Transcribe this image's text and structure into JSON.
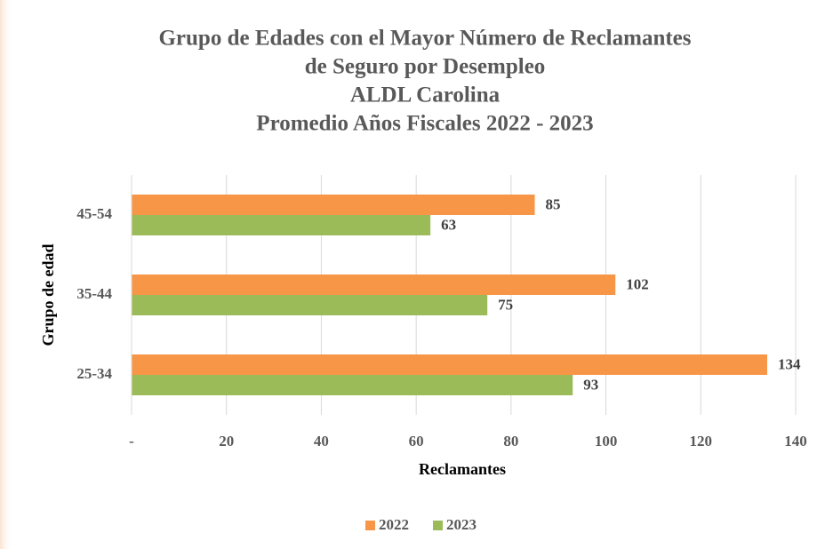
{
  "chart_data": {
    "type": "bar",
    "orientation": "horizontal",
    "title": [
      "Grupo  de Edades con el Mayor Número de Reclamantes",
      "de Seguro por Desempleo",
      "ALDL Carolina",
      "Promedio  Años Fiscales 2022 - 2023"
    ],
    "x_label": "Reclamantes",
    "y_label": "Grupo  de  edad",
    "categories": [
      "25-34",
      "35-44",
      "45-54"
    ],
    "series": [
      {
        "name": "2022",
        "color": "#f79646",
        "values": [
          134,
          102,
          85
        ]
      },
      {
        "name": "2023",
        "color": "#9bbb59",
        "values": [
          93,
          75,
          63
        ]
      }
    ],
    "xlim": [
      0,
      140
    ],
    "xticks": [
      {
        "value": 0,
        "label": "-"
      },
      20,
      40,
      60,
      80,
      100,
      120,
      140
    ],
    "grid": true,
    "legend": "bottom"
  }
}
